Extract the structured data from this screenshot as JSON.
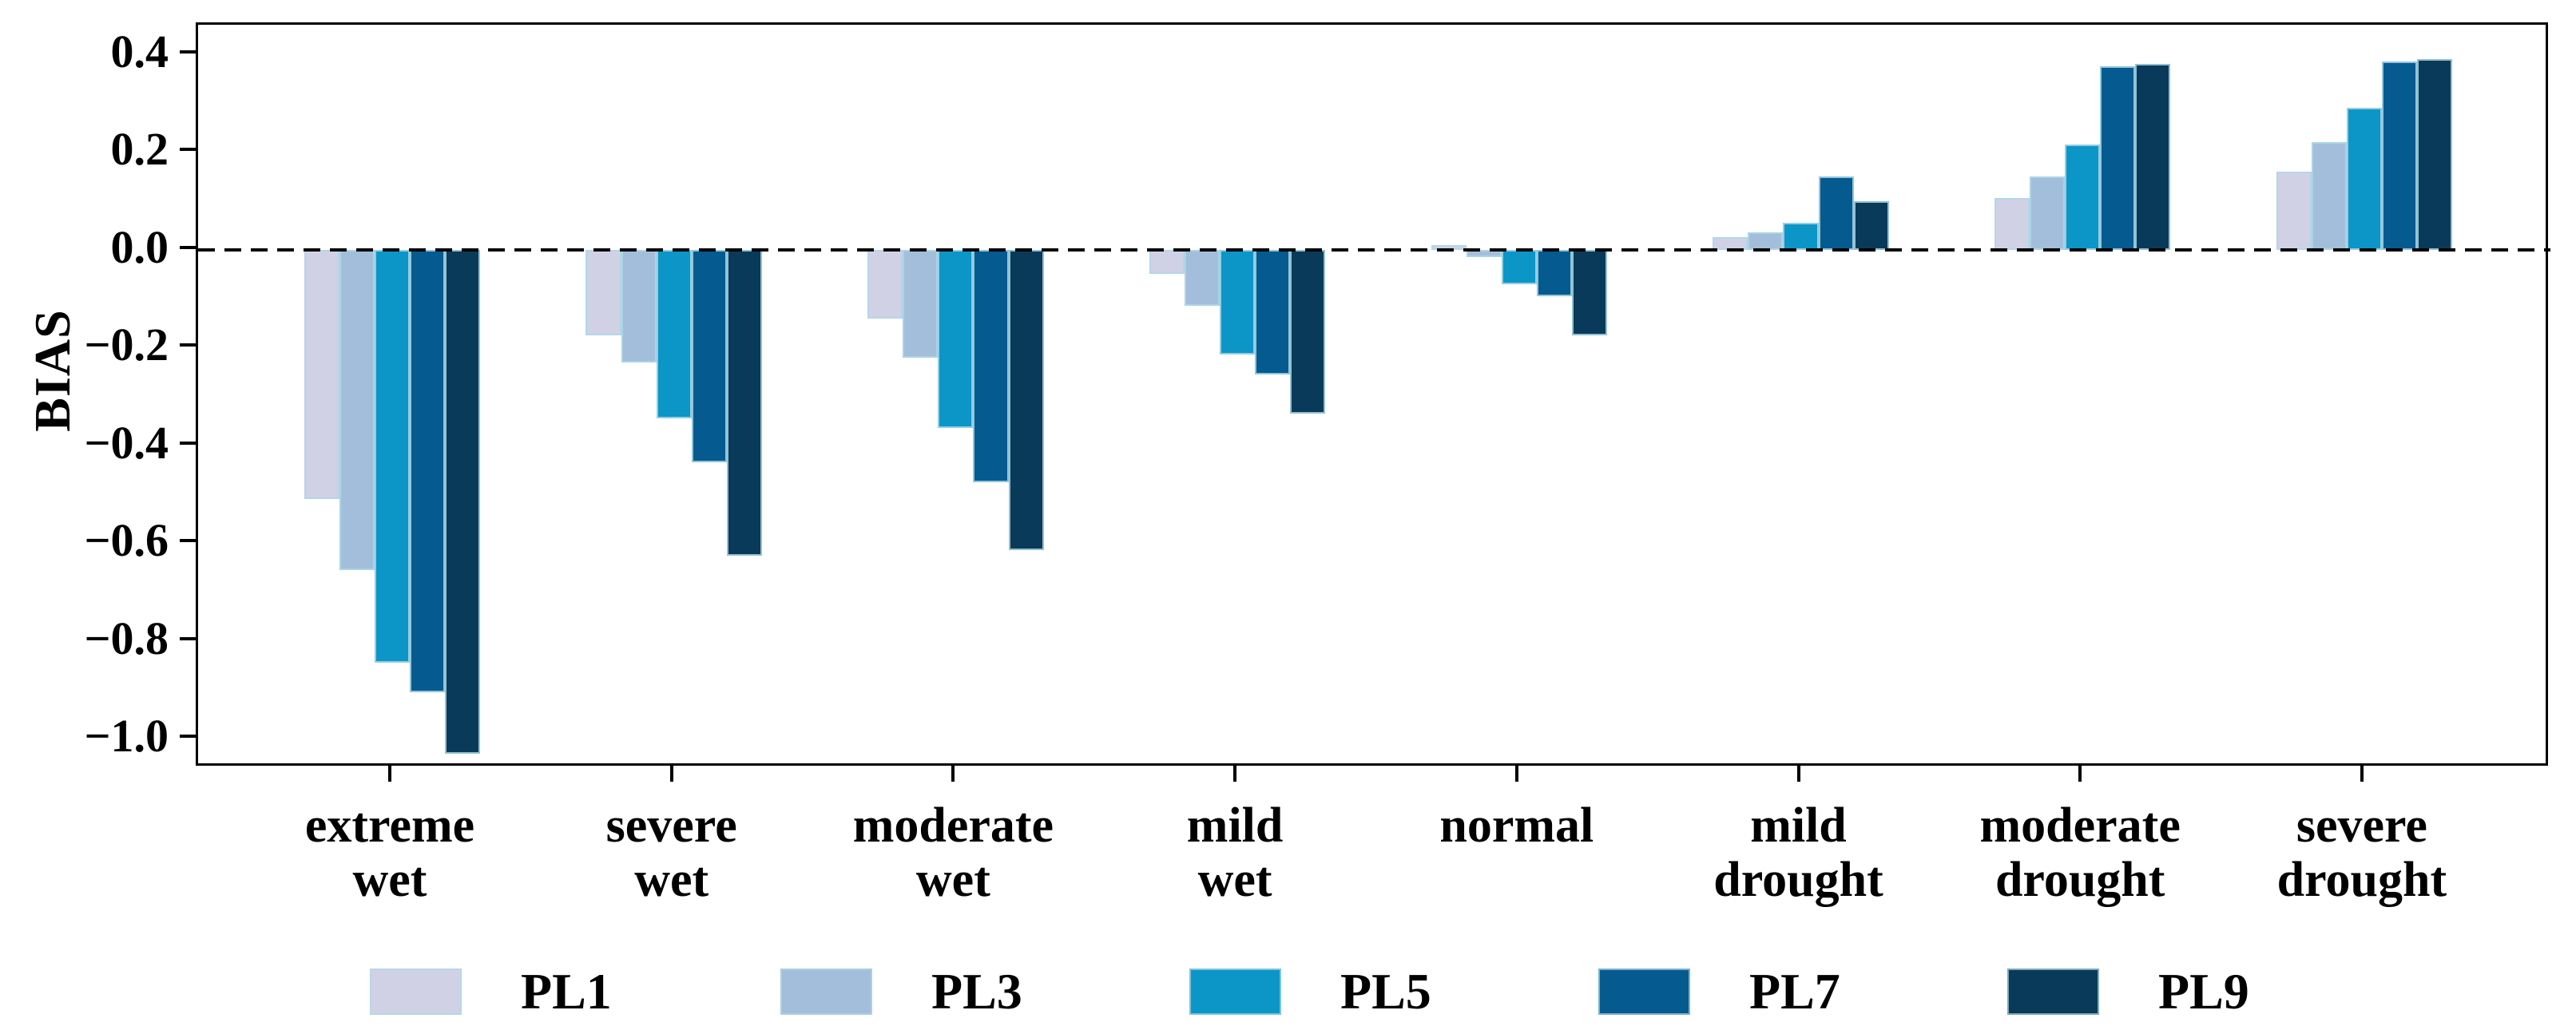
{
  "chart_data": {
    "type": "bar",
    "title": "",
    "xlabel": "",
    "ylabel": "BIAS",
    "categories": [
      "extreme\nwet",
      "severe\nwet",
      "moderate\nwet",
      "mild\nwet",
      "normal",
      "mild\ndrought",
      "moderate\ndrought",
      "severe\ndrought"
    ],
    "series": [
      {
        "name": "PL1",
        "color": "#d1d1e6",
        "values": [
          -0.51,
          -0.175,
          -0.14,
          -0.05,
          0.01,
          0.025,
          0.105,
          0.16
        ]
      },
      {
        "name": "PL3",
        "color": "#a3bedb",
        "values": [
          -0.655,
          -0.23,
          -0.22,
          -0.115,
          -0.015,
          0.035,
          0.15,
          0.22
        ]
      },
      {
        "name": "PL5",
        "color": "#0c95c7",
        "values": [
          -0.845,
          -0.345,
          -0.365,
          -0.215,
          -0.07,
          0.055,
          0.215,
          0.29
        ]
      },
      {
        "name": "PL7",
        "color": "#055a90",
        "values": [
          -0.905,
          -0.435,
          -0.475,
          -0.255,
          -0.095,
          0.15,
          0.375,
          0.385
        ]
      },
      {
        "name": "PL9",
        "color": "#0a3a59",
        "values": [
          -1.03,
          -0.625,
          -0.615,
          -0.335,
          -0.175,
          0.1,
          0.38,
          0.39
        ]
      }
    ],
    "ytick_labels": [
      "0.4",
      "0.2",
      "0.0",
      "−0.2",
      "−0.4",
      "−0.6",
      "−0.8",
      "−1.0"
    ],
    "ytick_values": [
      0.4,
      0.2,
      0.0,
      -0.2,
      -0.4,
      -0.6,
      -0.8,
      -1.0
    ],
    "ylim": [
      -1.06,
      0.46
    ],
    "zero_line_style": "dashed",
    "grid": "off",
    "legend_position": "bottom"
  }
}
